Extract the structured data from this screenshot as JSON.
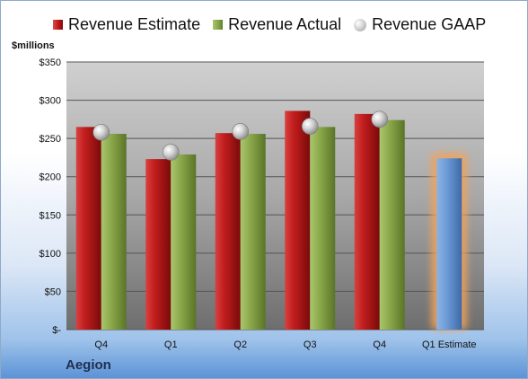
{
  "legend": {
    "estimate": "Revenue Estimate",
    "actual": "Revenue Actual",
    "gaap": "Revenue GAAP"
  },
  "unit_label": "$millions",
  "company": "Aegion",
  "colors": {
    "estimate": "#c0201f",
    "actual": "#8aa84a",
    "gaap": "#b5b5b5",
    "forecast": "#6d9bd6",
    "forecast_glow": "#f2a35a"
  },
  "chart_data": {
    "type": "bar",
    "categories": [
      "Q4",
      "Q1",
      "Q2",
      "Q3",
      "Q4",
      "Q1 Estimate"
    ],
    "series": [
      {
        "name": "Revenue Estimate",
        "values": [
          265,
          223,
          257,
          286,
          282,
          null
        ]
      },
      {
        "name": "Revenue Actual",
        "values": [
          256,
          229,
          256,
          265,
          274,
          null
        ]
      },
      {
        "name": "Revenue GAAP",
        "values": [
          258,
          232,
          259,
          266,
          275,
          null
        ],
        "style": "marker"
      },
      {
        "name": "Q1 Estimate",
        "values": [
          null,
          null,
          null,
          null,
          null,
          224
        ]
      }
    ],
    "ylim": [
      0,
      350
    ],
    "yticks": [
      0,
      50,
      100,
      150,
      200,
      250,
      300,
      350
    ],
    "ytick_labels": [
      "$-",
      "$50",
      "$100",
      "$150",
      "$200",
      "$250",
      "$300",
      "$350"
    ],
    "grid": true,
    "legend_position": "top"
  }
}
